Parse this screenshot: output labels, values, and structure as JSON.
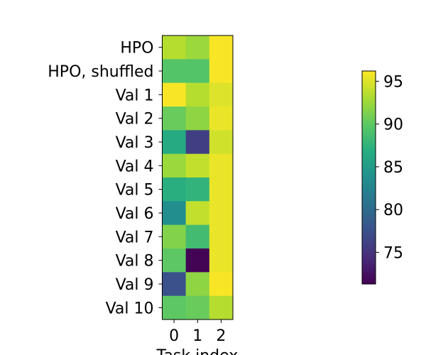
{
  "chart_data": {
    "type": "heatmap",
    "title": "",
    "xlabel": "Task index",
    "ylabel": "",
    "x_categories": [
      "0",
      "1",
      "2"
    ],
    "y_categories": [
      "HPO",
      "HPO, shuffled",
      "Val 1",
      "Val 2",
      "Val 3",
      "Val 4",
      "Val 5",
      "Val 6",
      "Val 7",
      "Val 8",
      "Val 9",
      "Val 10"
    ],
    "values": [
      [
        93.5,
        92.5,
        96.0
      ],
      [
        89.5,
        89.5,
        96.0
      ],
      [
        96.0,
        93.5,
        95.0
      ],
      [
        90.5,
        92.0,
        95.5
      ],
      [
        86.5,
        76.0,
        94.5
      ],
      [
        92.5,
        94.0,
        95.5
      ],
      [
        87.0,
        87.5,
        95.5
      ],
      [
        83.5,
        94.0,
        95.5
      ],
      [
        91.5,
        88.5,
        95.5
      ],
      [
        90.0,
        71.5,
        95.5
      ],
      [
        77.5,
        92.0,
        96.0
      ],
      [
        90.0,
        90.5,
        93.5
      ]
    ],
    "colorbar": {
      "min": 71.3,
      "max": 96.2,
      "ticks": [
        "75",
        "80",
        "85",
        "90",
        "95"
      ],
      "colormap": "viridis"
    }
  }
}
